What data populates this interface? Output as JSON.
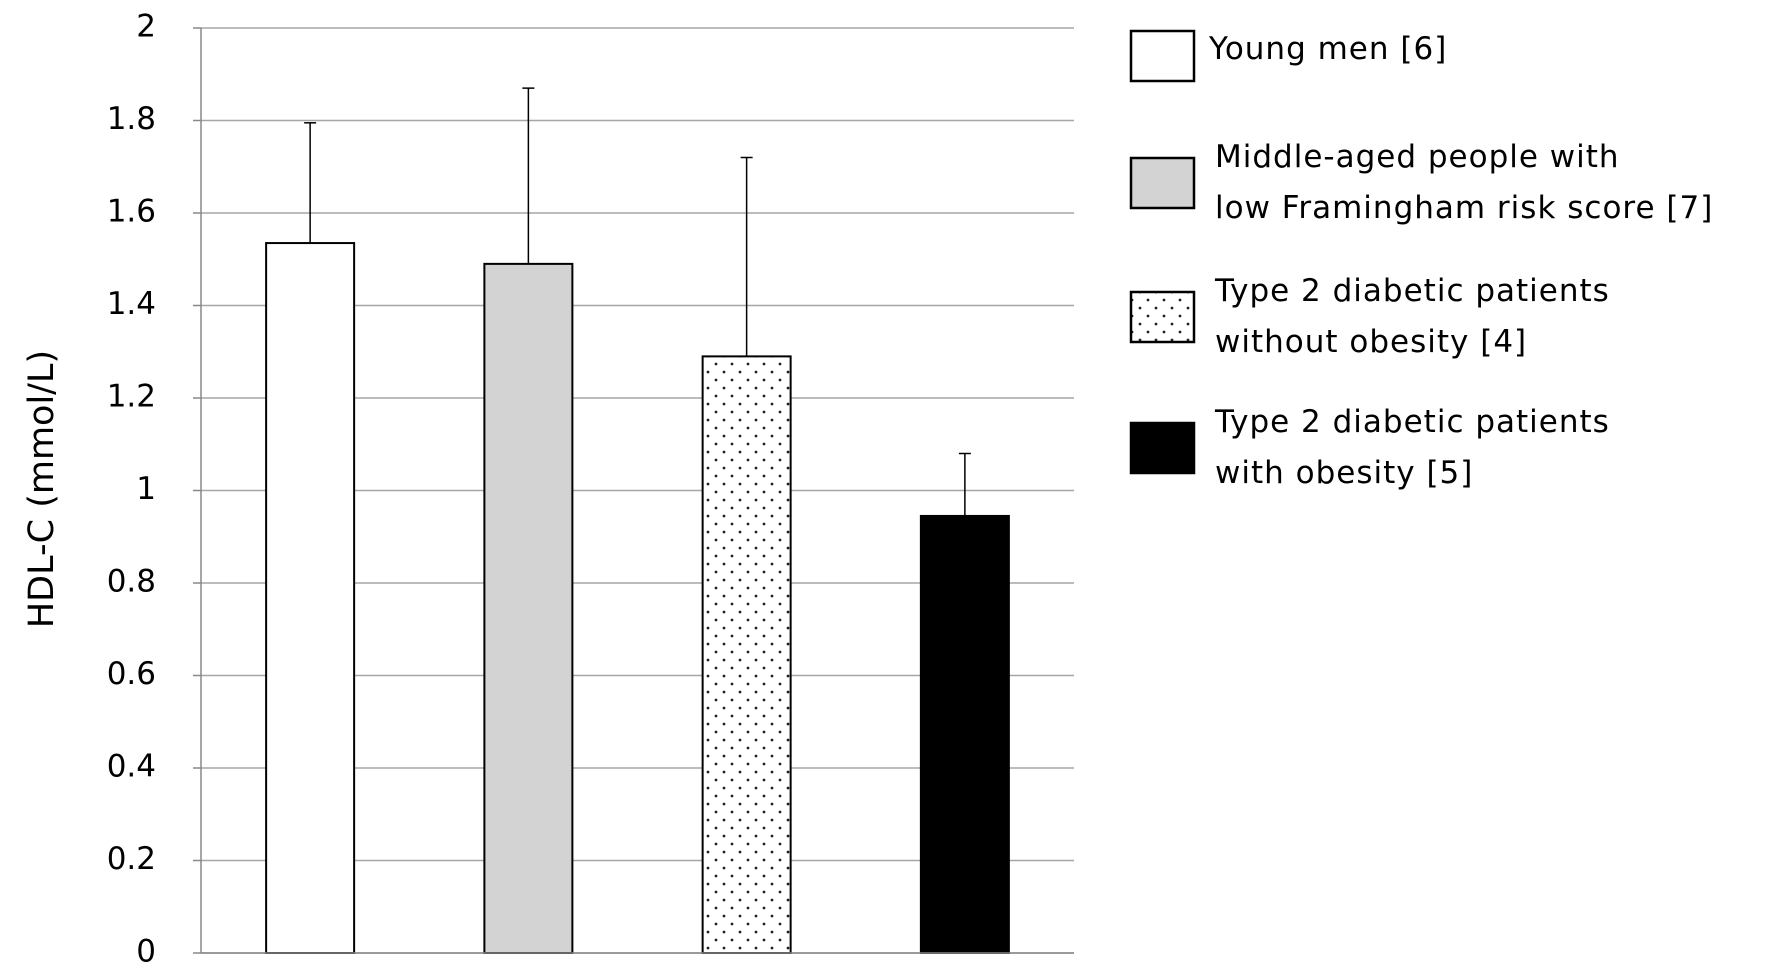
{
  "chart_data": {
    "type": "bar",
    "y_label": "HDL-C (mmol/L)",
    "ylim": [
      0,
      2
    ],
    "yticks": [
      0,
      0.2,
      0.4,
      0.6,
      0.8,
      1,
      1.2,
      1.4,
      1.6,
      1.8,
      2
    ],
    "grid": true,
    "legend": "right",
    "series": [
      {
        "name": "Young men [6]",
        "color": "#ffffff",
        "values": [
          1.535
        ],
        "errors": [
          0.26
        ]
      },
      {
        "name": "Middle-aged people with\nlow Framingham risk score [7]",
        "color": "#d3d3d3",
        "values": [
          1.49
        ],
        "errors": [
          0.38
        ]
      },
      {
        "name": "Type 2 diabetic patients\nwithout obesity [4]",
        "color": "#ffffff",
        "pattern": "dots",
        "values": [
          1.29
        ],
        "errors": [
          0.43
        ]
      },
      {
        "name": "Type 2 diabetic patients\nwith obesity [5]",
        "color": "#000000",
        "values": [
          0.945
        ],
        "errors": [
          0.135
        ]
      }
    ]
  }
}
